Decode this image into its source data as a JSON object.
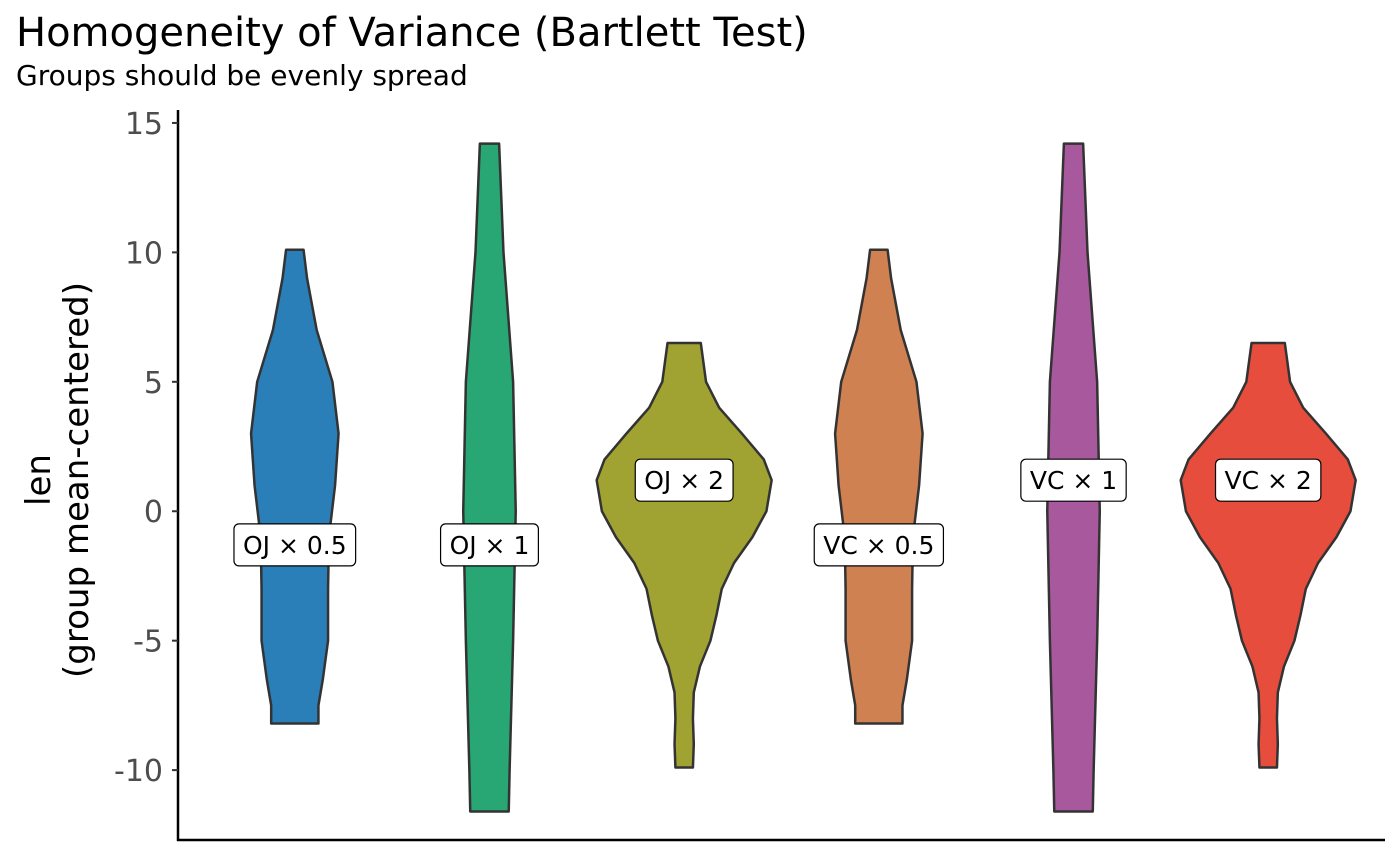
{
  "chart_data": {
    "type": "violin",
    "title": "Homogeneity of Variance (Bartlett Test)",
    "subtitle": "Groups should be evenly spread",
    "y_label": [
      "len",
      "(group mean-centered)"
    ],
    "ylim": [
      -12.7,
      15.5
    ],
    "yticks": [
      -10,
      -5,
      0,
      5,
      10,
      15
    ],
    "series": [
      {
        "name": "OJ × 0.5",
        "color": "#2a7fb8",
        "label_y": -1.3,
        "y": [
          10.1,
          9,
          7,
          5,
          3,
          1,
          -1,
          -3,
          -5,
          -6.5,
          -7.5,
          -8.2
        ],
        "density": [
          0.1,
          0.14,
          0.25,
          0.43,
          0.5,
          0.46,
          0.39,
          0.38,
          0.38,
          0.32,
          0.27,
          0.27
        ]
      },
      {
        "name": "OJ × 1",
        "color": "#28a673",
        "label_y": -1.3,
        "y": [
          14.2,
          10,
          5,
          0,
          -5,
          -10,
          -11.6
        ],
        "density": [
          0.11,
          0.16,
          0.27,
          0.3,
          0.27,
          0.23,
          0.22
        ]
      },
      {
        "name": "OJ × 2",
        "color": "#a0a231",
        "label_y": 1.2,
        "y": [
          6.5,
          5,
          4,
          3,
          2,
          1.2,
          0,
          -1,
          -2,
          -3,
          -4,
          -5,
          -6,
          -7,
          -8,
          -9,
          -9.9
        ],
        "density": [
          0.19,
          0.25,
          0.4,
          0.66,
          0.91,
          1.0,
          0.94,
          0.78,
          0.57,
          0.43,
          0.37,
          0.3,
          0.18,
          0.11,
          0.1,
          0.11,
          0.1
        ]
      },
      {
        "name": "VC × 0.5",
        "color": "#d08152",
        "label_y": -1.3,
        "y": [
          10.1,
          9,
          7,
          5,
          3,
          1,
          -1,
          -3,
          -5,
          -6.5,
          -7.5,
          -8.2
        ],
        "density": [
          0.1,
          0.14,
          0.25,
          0.43,
          0.5,
          0.46,
          0.39,
          0.38,
          0.38,
          0.32,
          0.27,
          0.27
        ]
      },
      {
        "name": "VC × 1",
        "color": "#a8589c",
        "label_y": 1.2,
        "y": [
          14.2,
          10,
          5,
          0,
          -5,
          -10,
          -11.6
        ],
        "density": [
          0.11,
          0.16,
          0.27,
          0.3,
          0.27,
          0.23,
          0.22
        ]
      },
      {
        "name": "VC × 2",
        "color": "#e64d3d",
        "label_y": 1.2,
        "y": [
          6.5,
          5,
          4,
          3,
          2,
          1.2,
          0,
          -1,
          -2,
          -3,
          -4,
          -5,
          -6,
          -7,
          -8,
          -9,
          -9.9
        ],
        "density": [
          0.19,
          0.25,
          0.4,
          0.66,
          0.91,
          1.0,
          0.94,
          0.78,
          0.57,
          0.43,
          0.37,
          0.3,
          0.18,
          0.11,
          0.1,
          0.11,
          0.1
        ]
      }
    ]
  }
}
